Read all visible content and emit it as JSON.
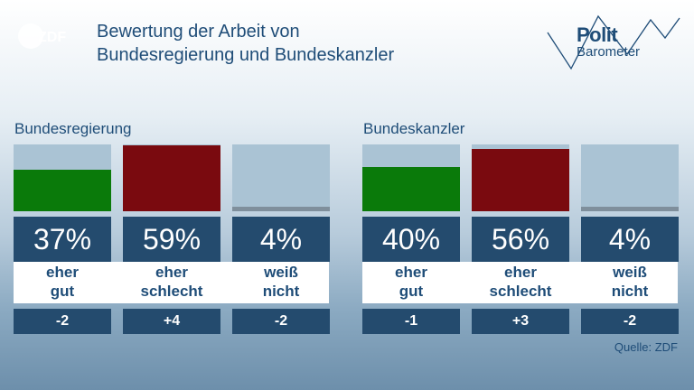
{
  "logo": {
    "name": "ZDF"
  },
  "title": {
    "line1": "Bewertung der Arbeit von",
    "line2": "Bundesregierung und Bundeskanzler"
  },
  "brand": {
    "line1": "Polit",
    "line2": "Barometer"
  },
  "colors": {
    "positive": "#0a7a0a",
    "negative": "#7a0a0f",
    "neutral": "#7f8f9c",
    "empty": "#aac3d4",
    "panel": "#244b6e",
    "text": "#1f4d78"
  },
  "chart_data": [
    {
      "type": "bar",
      "title": "Bundesregierung",
      "categories": [
        "eher\ngut",
        "eher\nschlecht",
        "weiß\nnicht"
      ],
      "values": [
        37,
        59,
        4
      ],
      "value_labels": [
        "37%",
        "59%",
        "4%"
      ],
      "changes": [
        "-2",
        "+4",
        "-2"
      ],
      "ylim": [
        0,
        60
      ]
    },
    {
      "type": "bar",
      "title": "Bundeskanzler",
      "categories": [
        "eher\ngut",
        "eher\nschlecht",
        "weiß\nnicht"
      ],
      "values": [
        40,
        56,
        4
      ],
      "value_labels": [
        "40%",
        "56%",
        "4%"
      ],
      "changes": [
        "-1",
        "+3",
        "-2"
      ],
      "ylim": [
        0,
        60
      ]
    }
  ],
  "source": "Quelle: ZDF"
}
